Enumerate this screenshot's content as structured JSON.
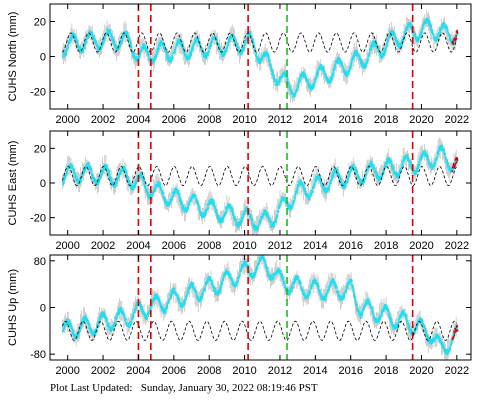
{
  "footer": {
    "label": "Plot Last Updated:",
    "value": "Sunday, January 30, 2022 08:19:46 PST"
  },
  "colors": {
    "data": "#1fe0f0",
    "error": "#b0b0b0",
    "recent": "#cc0000",
    "model": "#000000",
    "red_line": "#dd0000",
    "green_line": "#22bb22"
  },
  "chart_data": [
    {
      "type": "scatter",
      "ylabel": "CUHS North (mm)",
      "xlim": [
        1999.0,
        2022.8
      ],
      "ylim": [
        -30,
        30
      ],
      "yticks": [
        -20,
        0,
        20
      ],
      "xticks": [
        2000,
        2002,
        2004,
        2006,
        2008,
        2010,
        2012,
        2014,
        2016,
        2018,
        2020,
        2022
      ],
      "red_events": [
        2004.0,
        2004.7,
        2010.2,
        2019.5
      ],
      "green_events": [
        2012.4
      ],
      "series": [
        {
          "x": [
            1999.7,
            2000.5,
            2001.5,
            2002.5,
            2003.5,
            2004.0,
            2004.6,
            2005.5,
            2006.5,
            2007.5,
            2008.5,
            2009.5,
            2010.3,
            2011.0,
            2011.5,
            2012.0,
            2012.5,
            2013.5,
            2014.5,
            2015.5,
            2016.5,
            2017.5,
            2018.5,
            2019.5,
            2020.5,
            2021.5,
            2022.0
          ],
          "y": [
            6,
            8,
            9,
            10,
            8,
            0,
            2,
            3,
            4,
            5,
            6,
            7,
            8,
            0,
            -8,
            -12,
            -18,
            -14,
            -10,
            -6,
            -2,
            4,
            10,
            14,
            16,
            12,
            14
          ]
        }
      ]
    },
    {
      "type": "scatter",
      "ylabel": "CUHS East (mm)",
      "xlim": [
        1999.0,
        2022.8
      ],
      "ylim": [
        -30,
        30
      ],
      "yticks": [
        -20,
        0,
        20
      ],
      "xticks": [
        2000,
        2002,
        2004,
        2006,
        2008,
        2010,
        2012,
        2014,
        2016,
        2018,
        2020,
        2022
      ],
      "red_events": [
        2004.0,
        2004.7,
        2010.2,
        2019.5
      ],
      "green_events": [
        2012.4
      ],
      "series": [
        {
          "x": [
            1999.7,
            2000.5,
            2001.5,
            2002.5,
            2003.5,
            2004.0,
            2005.0,
            2006.0,
            2007.0,
            2008.0,
            2009.0,
            2010.0,
            2010.5,
            2011.0,
            2011.5,
            2012.0,
            2013.0,
            2014.0,
            2015.0,
            2016.0,
            2017.0,
            2018.0,
            2019.0,
            2020.0,
            2021.0,
            2022.0
          ],
          "y": [
            4,
            6,
            5,
            4,
            3,
            0,
            -5,
            -9,
            -12,
            -15,
            -18,
            -20,
            -21,
            -22,
            -20,
            -15,
            -5,
            -2,
            2,
            4,
            6,
            8,
            10,
            12,
            16,
            10
          ]
        }
      ]
    },
    {
      "type": "scatter",
      "ylabel": "CUHS Up (mm)",
      "xlim": [
        1999.0,
        2022.8
      ],
      "ylim": [
        -90,
        90
      ],
      "yticks": [
        -80,
        0,
        80
      ],
      "xticks": [
        2000,
        2002,
        2004,
        2006,
        2008,
        2010,
        2012,
        2014,
        2016,
        2018,
        2020,
        2022
      ],
      "red_events": [
        2004.0,
        2004.7,
        2010.2,
        2019.5
      ],
      "green_events": [
        2012.4
      ],
      "series": [
        {
          "x": [
            1999.7,
            2000.5,
            2001.5,
            2002.5,
            2003.5,
            2004.5,
            2005.5,
            2006.5,
            2007.5,
            2008.5,
            2009.5,
            2010.5,
            2011.0,
            2011.5,
            2012.0,
            2013.0,
            2014.0,
            2015.0,
            2016.0,
            2016.5,
            2017.5,
            2018.5,
            2019.5,
            2020.5,
            2021.0,
            2021.5,
            2022.0
          ],
          "y": [
            -40,
            -35,
            -30,
            -22,
            -15,
            0,
            10,
            20,
            30,
            40,
            55,
            70,
            72,
            65,
            45,
            35,
            30,
            30,
            30,
            0,
            -10,
            -20,
            -30,
            -45,
            -70,
            -60,
            -50
          ]
        }
      ]
    }
  ]
}
